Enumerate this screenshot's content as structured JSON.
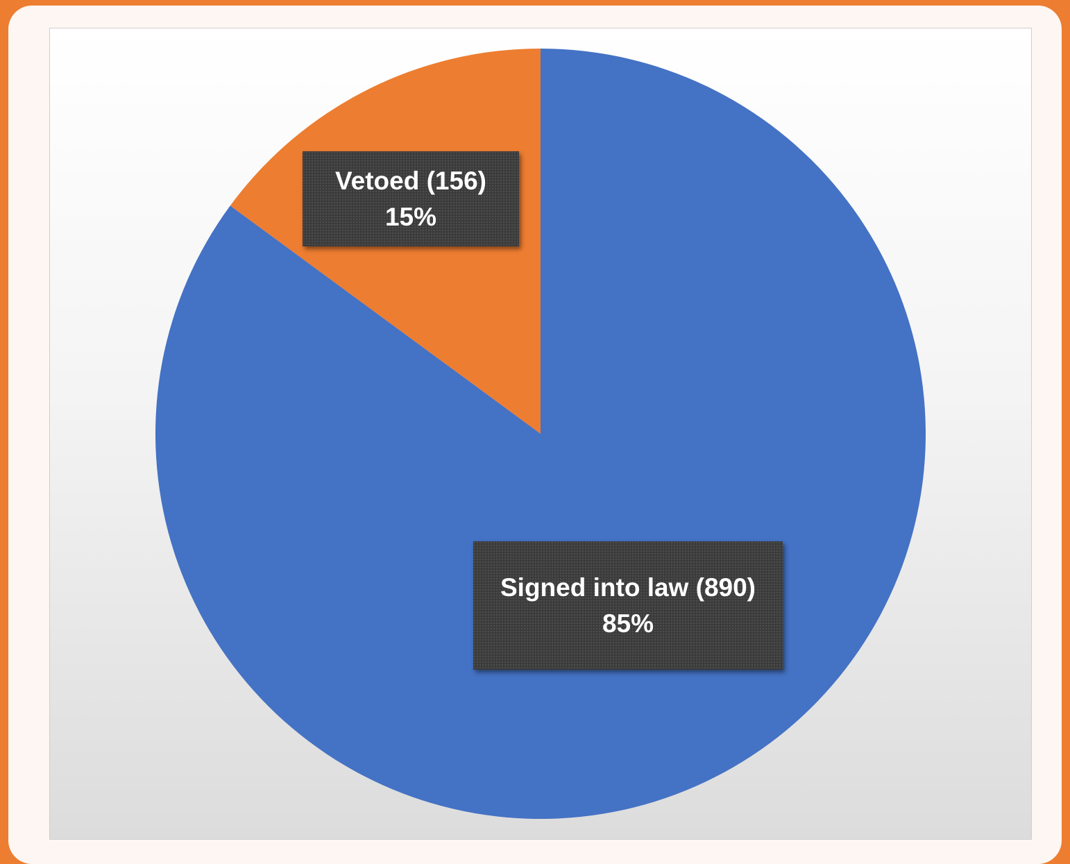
{
  "chart_data": {
    "type": "pie",
    "slices": [
      {
        "label": "Signed into law (890)",
        "value": 890,
        "percent_label": "85%",
        "color": "#4472C4"
      },
      {
        "label": "Vetoed (156)",
        "value": 156,
        "percent_label": "15%",
        "color": "#ED7D31"
      }
    ],
    "start_angle_deg": 0,
    "direction": "clockwise",
    "legend": "none",
    "data_label_style": "dark callout boxes"
  },
  "colors": {
    "frame": "#ED7D31",
    "card": "#FDF6F2",
    "label_box": "#3B3B3B",
    "label_text": "#FFFFFF"
  }
}
